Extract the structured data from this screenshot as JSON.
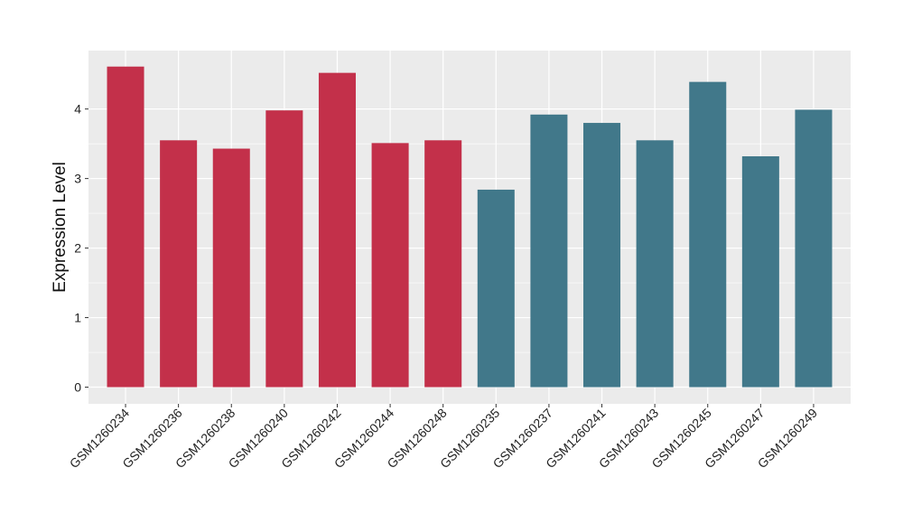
{
  "chart_data": {
    "type": "bar",
    "title": "",
    "xlabel": "",
    "ylabel": "Expression Level",
    "ylim": [
      -0.24,
      4.84
    ],
    "yticks": [
      0,
      1,
      2,
      3,
      4
    ],
    "grid": true,
    "background": "#ebebeb",
    "gridline_color": "#ffffff",
    "categories": [
      "GSM1260234",
      "GSM1260236",
      "GSM1260238",
      "GSM1260240",
      "GSM1260242",
      "GSM1260244",
      "GSM1260248",
      "GSM1260235",
      "GSM1260237",
      "GSM1260241",
      "GSM1260243",
      "GSM1260245",
      "GSM1260247",
      "GSM1260249"
    ],
    "values": [
      4.61,
      3.55,
      3.43,
      3.98,
      4.52,
      3.51,
      3.55,
      2.84,
      3.92,
      3.8,
      3.55,
      4.39,
      3.32,
      3.99
    ],
    "colors": [
      "#c3304a",
      "#c3304a",
      "#c3304a",
      "#c3304a",
      "#c3304a",
      "#c3304a",
      "#c3304a",
      "#41788a",
      "#41788a",
      "#41788a",
      "#41788a",
      "#41788a",
      "#41788a",
      "#41788a"
    ]
  }
}
